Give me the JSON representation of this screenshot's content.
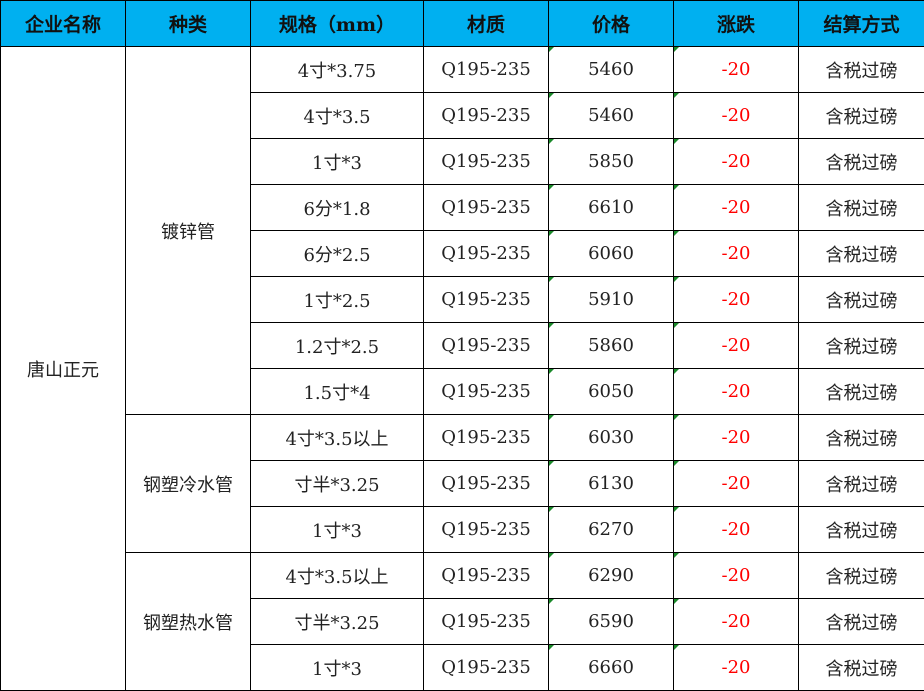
{
  "headers": [
    "企业名称",
    "种类",
    "规格（mm）",
    "材质",
    "价格",
    "涨跌",
    "结算方式"
  ],
  "company": "唐山正元",
  "groups": [
    {
      "type": "镀锌管",
      "rows": [
        {
          "spec": "4寸*3.75",
          "material": "Q195-235",
          "price": "5460",
          "change": "-20",
          "settlement": "含税过磅"
        },
        {
          "spec": "4寸*3.5",
          "material": "Q195-235",
          "price": "5460",
          "change": "-20",
          "settlement": "含税过磅"
        },
        {
          "spec": "1寸*3",
          "material": "Q195-235",
          "price": "5850",
          "change": "-20",
          "settlement": "含税过磅"
        },
        {
          "spec": "6分*1.8",
          "material": "Q195-235",
          "price": "6610",
          "change": "-20",
          "settlement": "含税过磅"
        },
        {
          "spec": "6分*2.5",
          "material": "Q195-235",
          "price": "6060",
          "change": "-20",
          "settlement": "含税过磅"
        },
        {
          "spec": "1寸*2.5",
          "material": "Q195-235",
          "price": "5910",
          "change": "-20",
          "settlement": "含税过磅"
        },
        {
          "spec": "1.2寸*2.5",
          "material": "Q195-235",
          "price": "5860",
          "change": "-20",
          "settlement": "含税过磅"
        },
        {
          "spec": "1.5寸*4",
          "material": "Q195-235",
          "price": "6050",
          "change": "-20",
          "settlement": "含税过磅"
        }
      ]
    },
    {
      "type": "钢塑冷水管",
      "rows": [
        {
          "spec": "4寸*3.5以上",
          "material": "Q195-235",
          "price": "6030",
          "change": "-20",
          "settlement": "含税过磅"
        },
        {
          "spec": "寸半*3.25",
          "material": "Q195-235",
          "price": "6130",
          "change": "-20",
          "settlement": "含税过磅"
        },
        {
          "spec": "1寸*3",
          "material": "Q195-235",
          "price": "6270",
          "change": "-20",
          "settlement": "含税过磅"
        }
      ]
    },
    {
      "type": "钢塑热水管",
      "rows": [
        {
          "spec": "4寸*3.5以上",
          "material": "Q195-235",
          "price": "6290",
          "change": "-20",
          "settlement": "含税过磅"
        },
        {
          "spec": "寸半*3.25",
          "material": "Q195-235",
          "price": "6590",
          "change": "-20",
          "settlement": "含税过磅"
        },
        {
          "spec": "1寸*3",
          "material": "Q195-235",
          "price": "6660",
          "change": "-20",
          "settlement": "含税过磅"
        }
      ]
    }
  ],
  "colors": {
    "header_bg": "#00B0F0",
    "negative": "#FF0000"
  }
}
